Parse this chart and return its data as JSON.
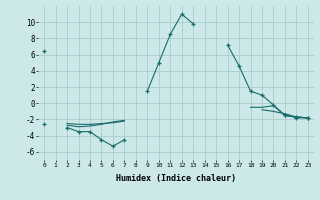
{
  "xlabel": "Humidex (Indice chaleur)",
  "bg_color": "#cce8e8",
  "grid_color": "#aacccc",
  "line_color": "#1a6b6b",
  "x_all": [
    0,
    1,
    2,
    3,
    4,
    5,
    6,
    7,
    8,
    9,
    10,
    11,
    12,
    13,
    14,
    15,
    16,
    17,
    18,
    19,
    20,
    21,
    22,
    23
  ],
  "line1_y": [
    6.5,
    null,
    null,
    null,
    null,
    null,
    null,
    null,
    null,
    1.5,
    5.0,
    8.5,
    11.0,
    9.8,
    null,
    null,
    7.2,
    4.6,
    1.5,
    1.0,
    -0.2,
    -1.5,
    -1.7,
    -1.8
  ],
  "line2_y": [
    -2.5,
    null,
    -3.0,
    -3.5,
    -3.5,
    -4.5,
    -5.3,
    -4.5,
    null,
    null,
    null,
    null,
    null,
    null,
    null,
    null,
    null,
    null,
    null,
    null,
    null,
    -1.4,
    -1.8,
    -1.8
  ],
  "line3_y": [
    -2.5,
    null,
    -2.7,
    -2.9,
    -2.8,
    -2.6,
    -2.3,
    -2.1,
    null,
    null,
    null,
    null,
    null,
    null,
    null,
    null,
    null,
    null,
    null,
    -0.8,
    -1.0,
    -1.3,
    -1.7,
    -1.8
  ],
  "line4_y": [
    -2.5,
    null,
    -2.5,
    -2.6,
    -2.6,
    -2.5,
    -2.4,
    -2.2,
    null,
    null,
    null,
    null,
    null,
    null,
    null,
    null,
    null,
    null,
    -0.5,
    -0.5,
    -0.3,
    -1.5,
    -1.7,
    -1.8
  ],
  "ylim": [
    -7,
    12
  ],
  "xlim": [
    -0.5,
    23.5
  ],
  "yticks": [
    -6,
    -4,
    -2,
    0,
    2,
    4,
    6,
    8,
    10
  ],
  "xticks": [
    0,
    1,
    2,
    3,
    4,
    5,
    6,
    7,
    8,
    9,
    10,
    11,
    12,
    13,
    14,
    15,
    16,
    17,
    18,
    19,
    20,
    21,
    22,
    23
  ],
  "xtick_labels": [
    "0",
    "1",
    "2",
    "3",
    "4",
    "5",
    "6",
    "7",
    "8",
    "9",
    "10",
    "11",
    "12",
    "13",
    "14",
    "15",
    "16",
    "17",
    "18",
    "19",
    "20",
    "21",
    "22",
    "23"
  ]
}
